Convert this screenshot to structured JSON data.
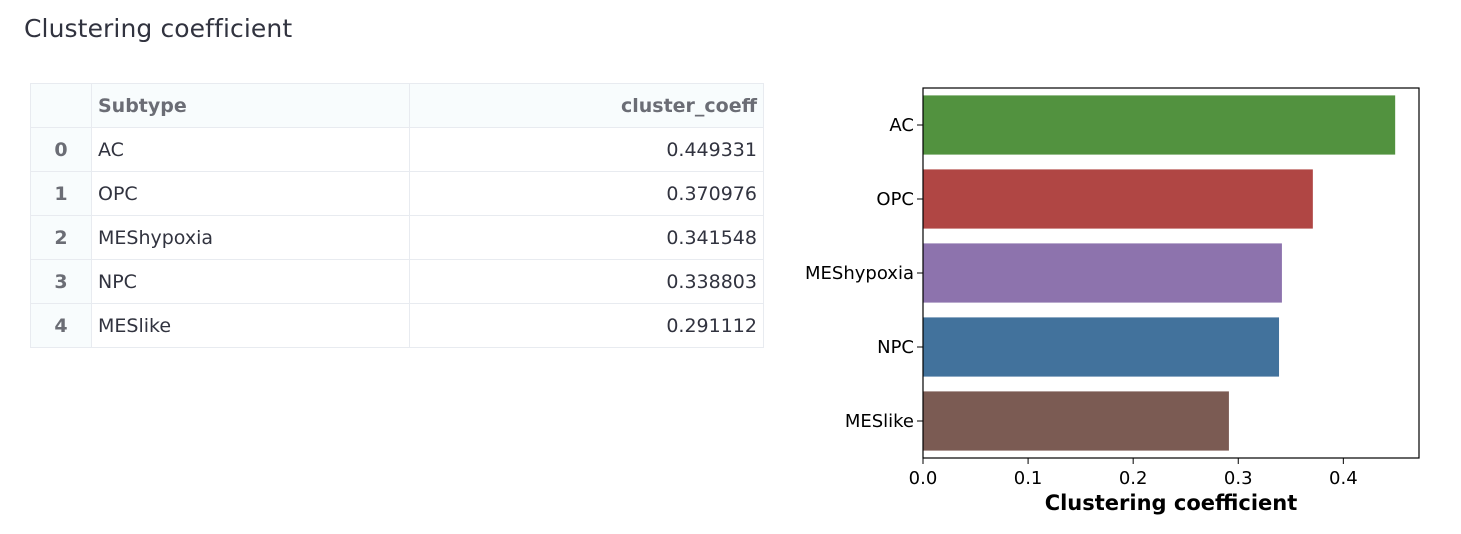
{
  "page": {
    "title": "Clustering coefficient"
  },
  "table": {
    "columns": [
      "",
      "Subtype",
      "cluster_coeff"
    ],
    "rows": [
      {
        "index": "0",
        "subtype": "AC",
        "cluster_coeff": "0.449331"
      },
      {
        "index": "1",
        "subtype": "OPC",
        "cluster_coeff": "0.370976"
      },
      {
        "index": "2",
        "subtype": "MEShypoxia",
        "cluster_coeff": "0.341548"
      },
      {
        "index": "3",
        "subtype": "NPC",
        "cluster_coeff": "0.338803"
      },
      {
        "index": "4",
        "subtype": "MESlike",
        "cluster_coeff": "0.291112"
      }
    ]
  },
  "chart_data": {
    "type": "bar",
    "orientation": "horizontal",
    "categories": [
      "AC",
      "OPC",
      "MEShypoxia",
      "NPC",
      "MESlike"
    ],
    "values": [
      0.449331,
      0.370976,
      0.341548,
      0.338803,
      0.291112
    ],
    "colors": [
      "#52923f",
      "#b04644",
      "#8d73ad",
      "#42729c",
      "#7b5b53"
    ],
    "title": "",
    "xlabel": "Clustering coefficient",
    "ylabel": "",
    "xlim": [
      0,
      0.472
    ],
    "xticks": [
      0.0,
      0.1,
      0.2,
      0.3,
      0.4
    ],
    "xtick_labels": [
      "0.0",
      "0.1",
      "0.2",
      "0.3",
      "0.4"
    ],
    "grid": false,
    "legend": "none"
  }
}
